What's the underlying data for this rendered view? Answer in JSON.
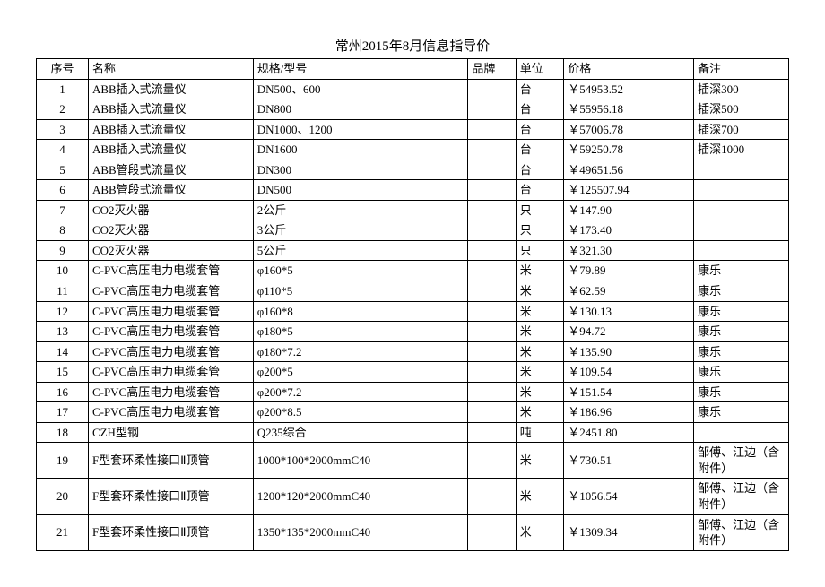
{
  "title": "常州2015年8月信息指导价",
  "columns": [
    "序号",
    "名称",
    "规格/型号",
    "品牌",
    "单位",
    "价格",
    "备注"
  ],
  "rows": [
    [
      "1",
      "ABB插入式流量仪",
      "DN500、600",
      "",
      "台",
      "￥54953.52",
      "插深300"
    ],
    [
      "2",
      "ABB插入式流量仪",
      "DN800",
      "",
      "台",
      "￥55956.18",
      "插深500"
    ],
    [
      "3",
      "ABB插入式流量仪",
      "DN1000、1200",
      "",
      "台",
      "￥57006.78",
      "插深700"
    ],
    [
      "4",
      "ABB插入式流量仪",
      "DN1600",
      "",
      "台",
      "￥59250.78",
      "插深1000"
    ],
    [
      "5",
      "ABB管段式流量仪",
      "DN300",
      "",
      "台",
      "￥49651.56",
      ""
    ],
    [
      "6",
      "ABB管段式流量仪",
      "DN500",
      "",
      "台",
      "￥125507.94",
      ""
    ],
    [
      "7",
      "CO2灭火器",
      "2公斤",
      "",
      "只",
      "￥147.90",
      ""
    ],
    [
      "8",
      "CO2灭火器",
      "3公斤",
      "",
      "只",
      "￥173.40",
      ""
    ],
    [
      "9",
      "CO2灭火器",
      "5公斤",
      "",
      "只",
      "￥321.30",
      ""
    ],
    [
      "10",
      "C-PVC高压电力电缆套管",
      "φ160*5",
      "",
      "米",
      "￥79.89",
      "康乐"
    ],
    [
      "11",
      "C-PVC高压电力电缆套管",
      "φ110*5",
      "",
      "米",
      "￥62.59",
      "康乐"
    ],
    [
      "12",
      "C-PVC高压电力电缆套管",
      "φ160*8",
      "",
      "米",
      "￥130.13",
      "康乐"
    ],
    [
      "13",
      "C-PVC高压电力电缆套管",
      "φ180*5",
      "",
      "米",
      "￥94.72",
      "康乐"
    ],
    [
      "14",
      "C-PVC高压电力电缆套管",
      "φ180*7.2",
      "",
      "米",
      "￥135.90",
      "康乐"
    ],
    [
      "15",
      "C-PVC高压电力电缆套管",
      "φ200*5",
      "",
      "米",
      "￥109.54",
      "康乐"
    ],
    [
      "16",
      "C-PVC高压电力电缆套管",
      "φ200*7.2",
      "",
      "米",
      "￥151.54",
      "康乐"
    ],
    [
      "17",
      "C-PVC高压电力电缆套管",
      "φ200*8.5",
      "",
      "米",
      "￥186.96",
      "康乐"
    ],
    [
      "18",
      "CZH型钢",
      "Q235综合",
      "",
      "吨",
      "￥2451.80",
      ""
    ],
    [
      "19",
      "F型套环柔性接口Ⅱ顶管",
      "1000*100*2000mmC40",
      "",
      "米",
      "￥730.51",
      "邹傅、江边（含附件）"
    ],
    [
      "20",
      "F型套环柔性接口Ⅱ顶管",
      "1200*120*2000mmC40",
      "",
      "米",
      "￥1056.54",
      "邹傅、江边（含附件）"
    ],
    [
      "21",
      "F型套环柔性接口Ⅱ顶管",
      "1350*135*2000mmC40",
      "",
      "米",
      "￥1309.34",
      "邹傅、江边（含附件）"
    ]
  ]
}
